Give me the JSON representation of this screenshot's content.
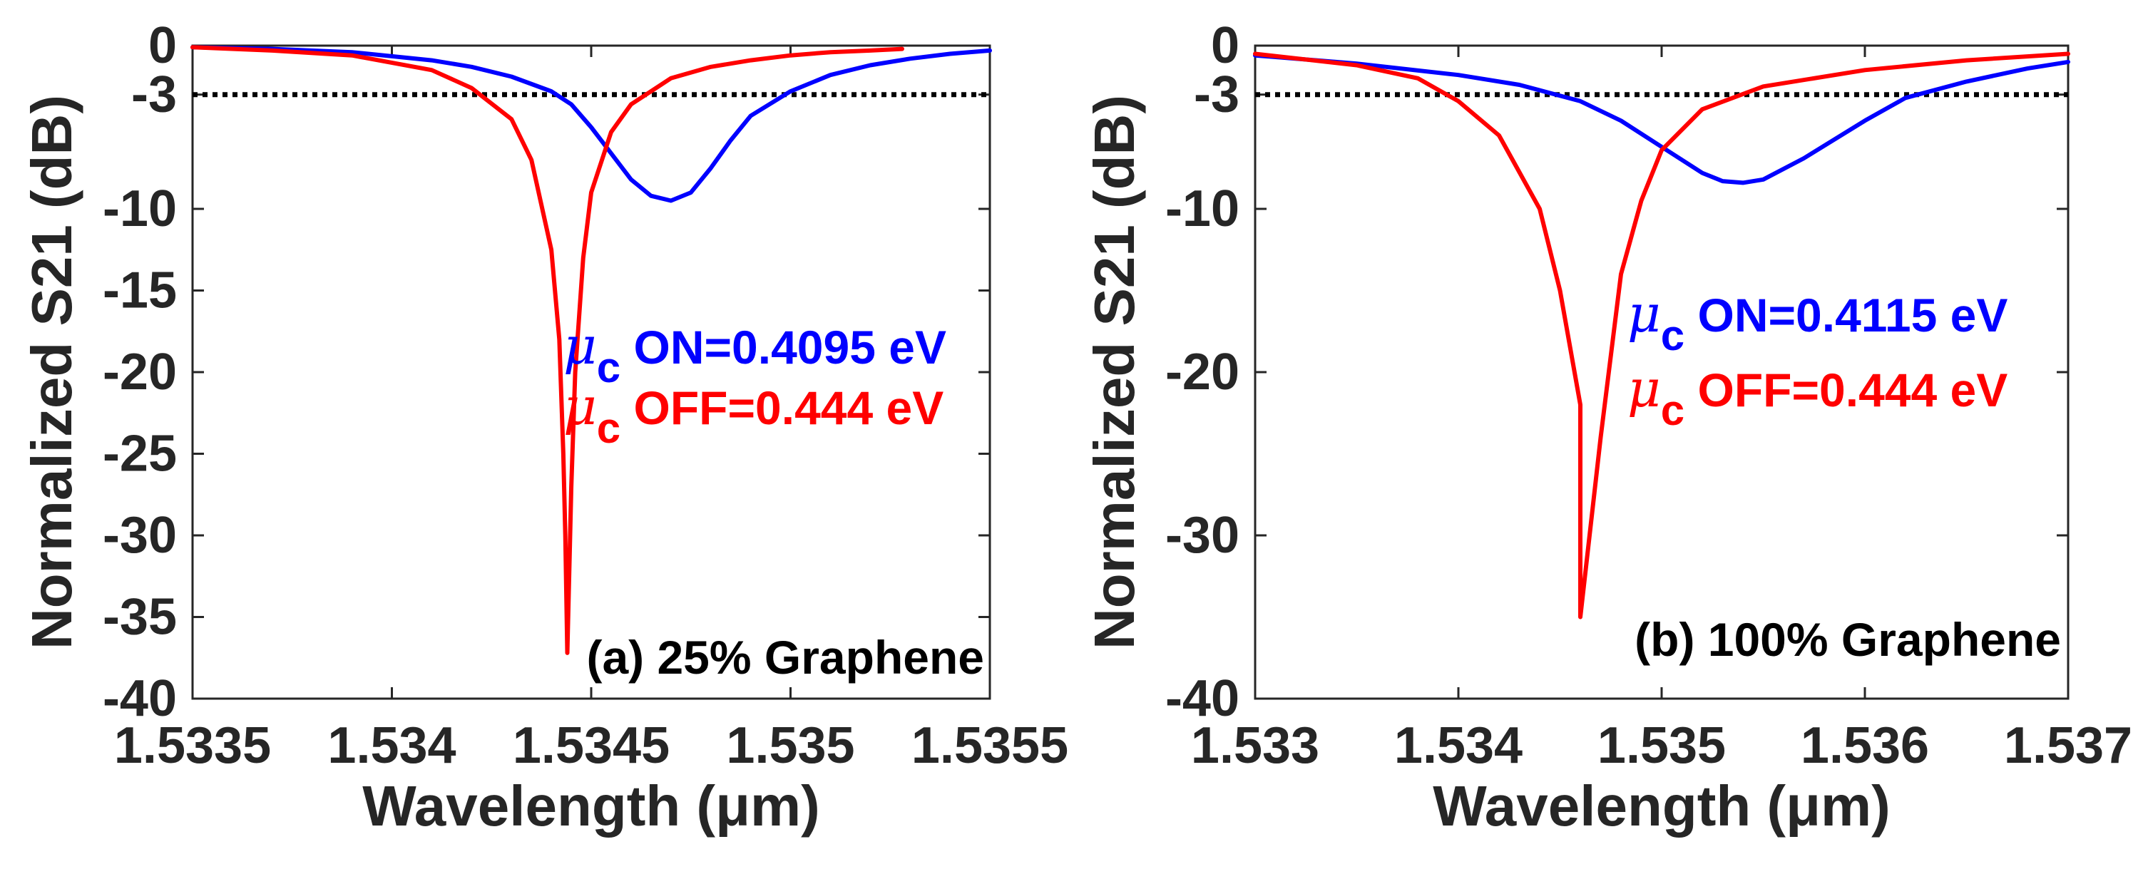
{
  "chart_data": [
    {
      "type": "line",
      "panel_label": "(a) 25% Graphene",
      "xlabel": "Wavelength (μm)",
      "ylabel": "Normalized S21 (dB)",
      "xlim": [
        1.5335,
        1.5355
      ],
      "ylim": [
        -40,
        0
      ],
      "x_ticks": [
        1.5335,
        1.534,
        1.5345,
        1.535,
        1.5355
      ],
      "x_tick_labels": [
        "1.5335",
        "1.534",
        "1.5345",
        "1.535",
        "1.5355"
      ],
      "y_ticks": [
        0,
        -3,
        -10,
        -15,
        -20,
        -25,
        -30,
        -35,
        -40
      ],
      "y_tick_labels": [
        "0",
        "-3",
        "-10",
        "-15",
        "-20",
        "-25",
        "-30",
        "-35",
        "-40"
      ],
      "reference_line": {
        "y": -3,
        "style": "dotted",
        "color": "#000000"
      },
      "legend": [
        {
          "symbol": "μ",
          "subscript": "c",
          "text": " ON=0.4095 eV",
          "color": "#0000ff"
        },
        {
          "symbol": "μ",
          "subscript": "c",
          "text": " OFF=0.444 eV",
          "color": "#ff0000"
        }
      ],
      "series": [
        {
          "name": "μc ON=0.4095 eV",
          "color": "#0000ff",
          "x": [
            1.5335,
            1.5337,
            1.5339,
            1.5341,
            1.5342,
            1.5343,
            1.5344,
            1.53445,
            1.5345,
            1.53455,
            1.5346,
            1.53465,
            1.5347,
            1.53475,
            1.5348,
            1.53485,
            1.5349,
            1.535,
            1.5351,
            1.5352,
            1.5353,
            1.5354,
            1.5355
          ],
          "y": [
            -0.1,
            -0.2,
            -0.4,
            -0.9,
            -1.3,
            -1.9,
            -2.8,
            -3.6,
            -5.0,
            -6.6,
            -8.2,
            -9.2,
            -9.5,
            -9.0,
            -7.5,
            -5.8,
            -4.3,
            -2.8,
            -1.8,
            -1.2,
            -0.8,
            -0.5,
            -0.3
          ]
        },
        {
          "name": "μc OFF=0.444 eV",
          "color": "#ff0000",
          "x": [
            1.5335,
            1.5337,
            1.5339,
            1.5341,
            1.5342,
            1.5343,
            1.53435,
            1.5344,
            1.53442,
            1.53443,
            1.534435,
            1.53444,
            1.53445,
            1.53446,
            1.53448,
            1.5345,
            1.53455,
            1.5346,
            1.5347,
            1.5348,
            1.5349,
            1.535,
            1.5351,
            1.5352,
            1.53528
          ],
          "y": [
            -0.1,
            -0.3,
            -0.6,
            -1.5,
            -2.6,
            -4.5,
            -7.0,
            -12.5,
            -18.0,
            -25.0,
            -30.0,
            -37.2,
            -27.0,
            -20.0,
            -13.0,
            -9.0,
            -5.3,
            -3.6,
            -2.0,
            -1.3,
            -0.9,
            -0.6,
            -0.4,
            -0.3,
            -0.2
          ]
        }
      ]
    },
    {
      "type": "line",
      "panel_label": "(b) 100% Graphene",
      "xlabel": "Wavelength (μm)",
      "ylabel": "Normalized S21 (dB)",
      "xlim": [
        1.533,
        1.537
      ],
      "ylim": [
        -40,
        0
      ],
      "x_ticks": [
        1.533,
        1.534,
        1.535,
        1.536,
        1.537
      ],
      "x_tick_labels": [
        "1.533",
        "1.534",
        "1.535",
        "1.536",
        "1.537"
      ],
      "y_ticks": [
        0,
        -3,
        -10,
        -20,
        -30,
        -40
      ],
      "y_tick_labels": [
        "0",
        "-3",
        "-10",
        "-20",
        "-30",
        "-40"
      ],
      "reference_line": {
        "y": -3,
        "style": "dotted",
        "color": "#000000"
      },
      "legend": [
        {
          "symbol": "μ",
          "subscript": "c",
          "text": " ON=0.4115 eV",
          "color": "#0000ff"
        },
        {
          "symbol": "μ",
          "subscript": "c",
          "text": " OFF=0.444 eV",
          "color": "#ff0000"
        }
      ],
      "series": [
        {
          "name": "μc ON=0.4115 eV",
          "color": "#0000ff",
          "x": [
            1.533,
            1.5335,
            1.534,
            1.5343,
            1.5346,
            1.5348,
            1.535,
            1.5352,
            1.5353,
            1.5354,
            1.5355,
            1.5357,
            1.536,
            1.5362,
            1.5365,
            1.5368,
            1.537
          ],
          "y": [
            -0.6,
            -1.1,
            -1.8,
            -2.4,
            -3.4,
            -4.6,
            -6.2,
            -7.8,
            -8.3,
            -8.4,
            -8.2,
            -6.9,
            -4.6,
            -3.2,
            -2.2,
            -1.4,
            -1.0
          ]
        },
        {
          "name": "μc OFF=0.444 eV",
          "color": "#ff0000",
          "x": [
            1.533,
            1.5335,
            1.5338,
            1.534,
            1.5342,
            1.5344,
            1.5345,
            1.5345,
            1.5346,
            1.5346,
            1.5346,
            1.5347,
            1.5348,
            1.5349,
            1.535,
            1.5352,
            1.5355,
            1.536,
            1.5365,
            1.537
          ],
          "y": [
            -0.5,
            -1.2,
            -2.0,
            -3.4,
            -5.5,
            -10.0,
            -15.0,
            -15.0,
            -22.0,
            -29.0,
            -35.0,
            -24.0,
            -14.0,
            -9.5,
            -6.4,
            -3.9,
            -2.5,
            -1.5,
            -0.9,
            -0.5
          ]
        }
      ]
    }
  ]
}
